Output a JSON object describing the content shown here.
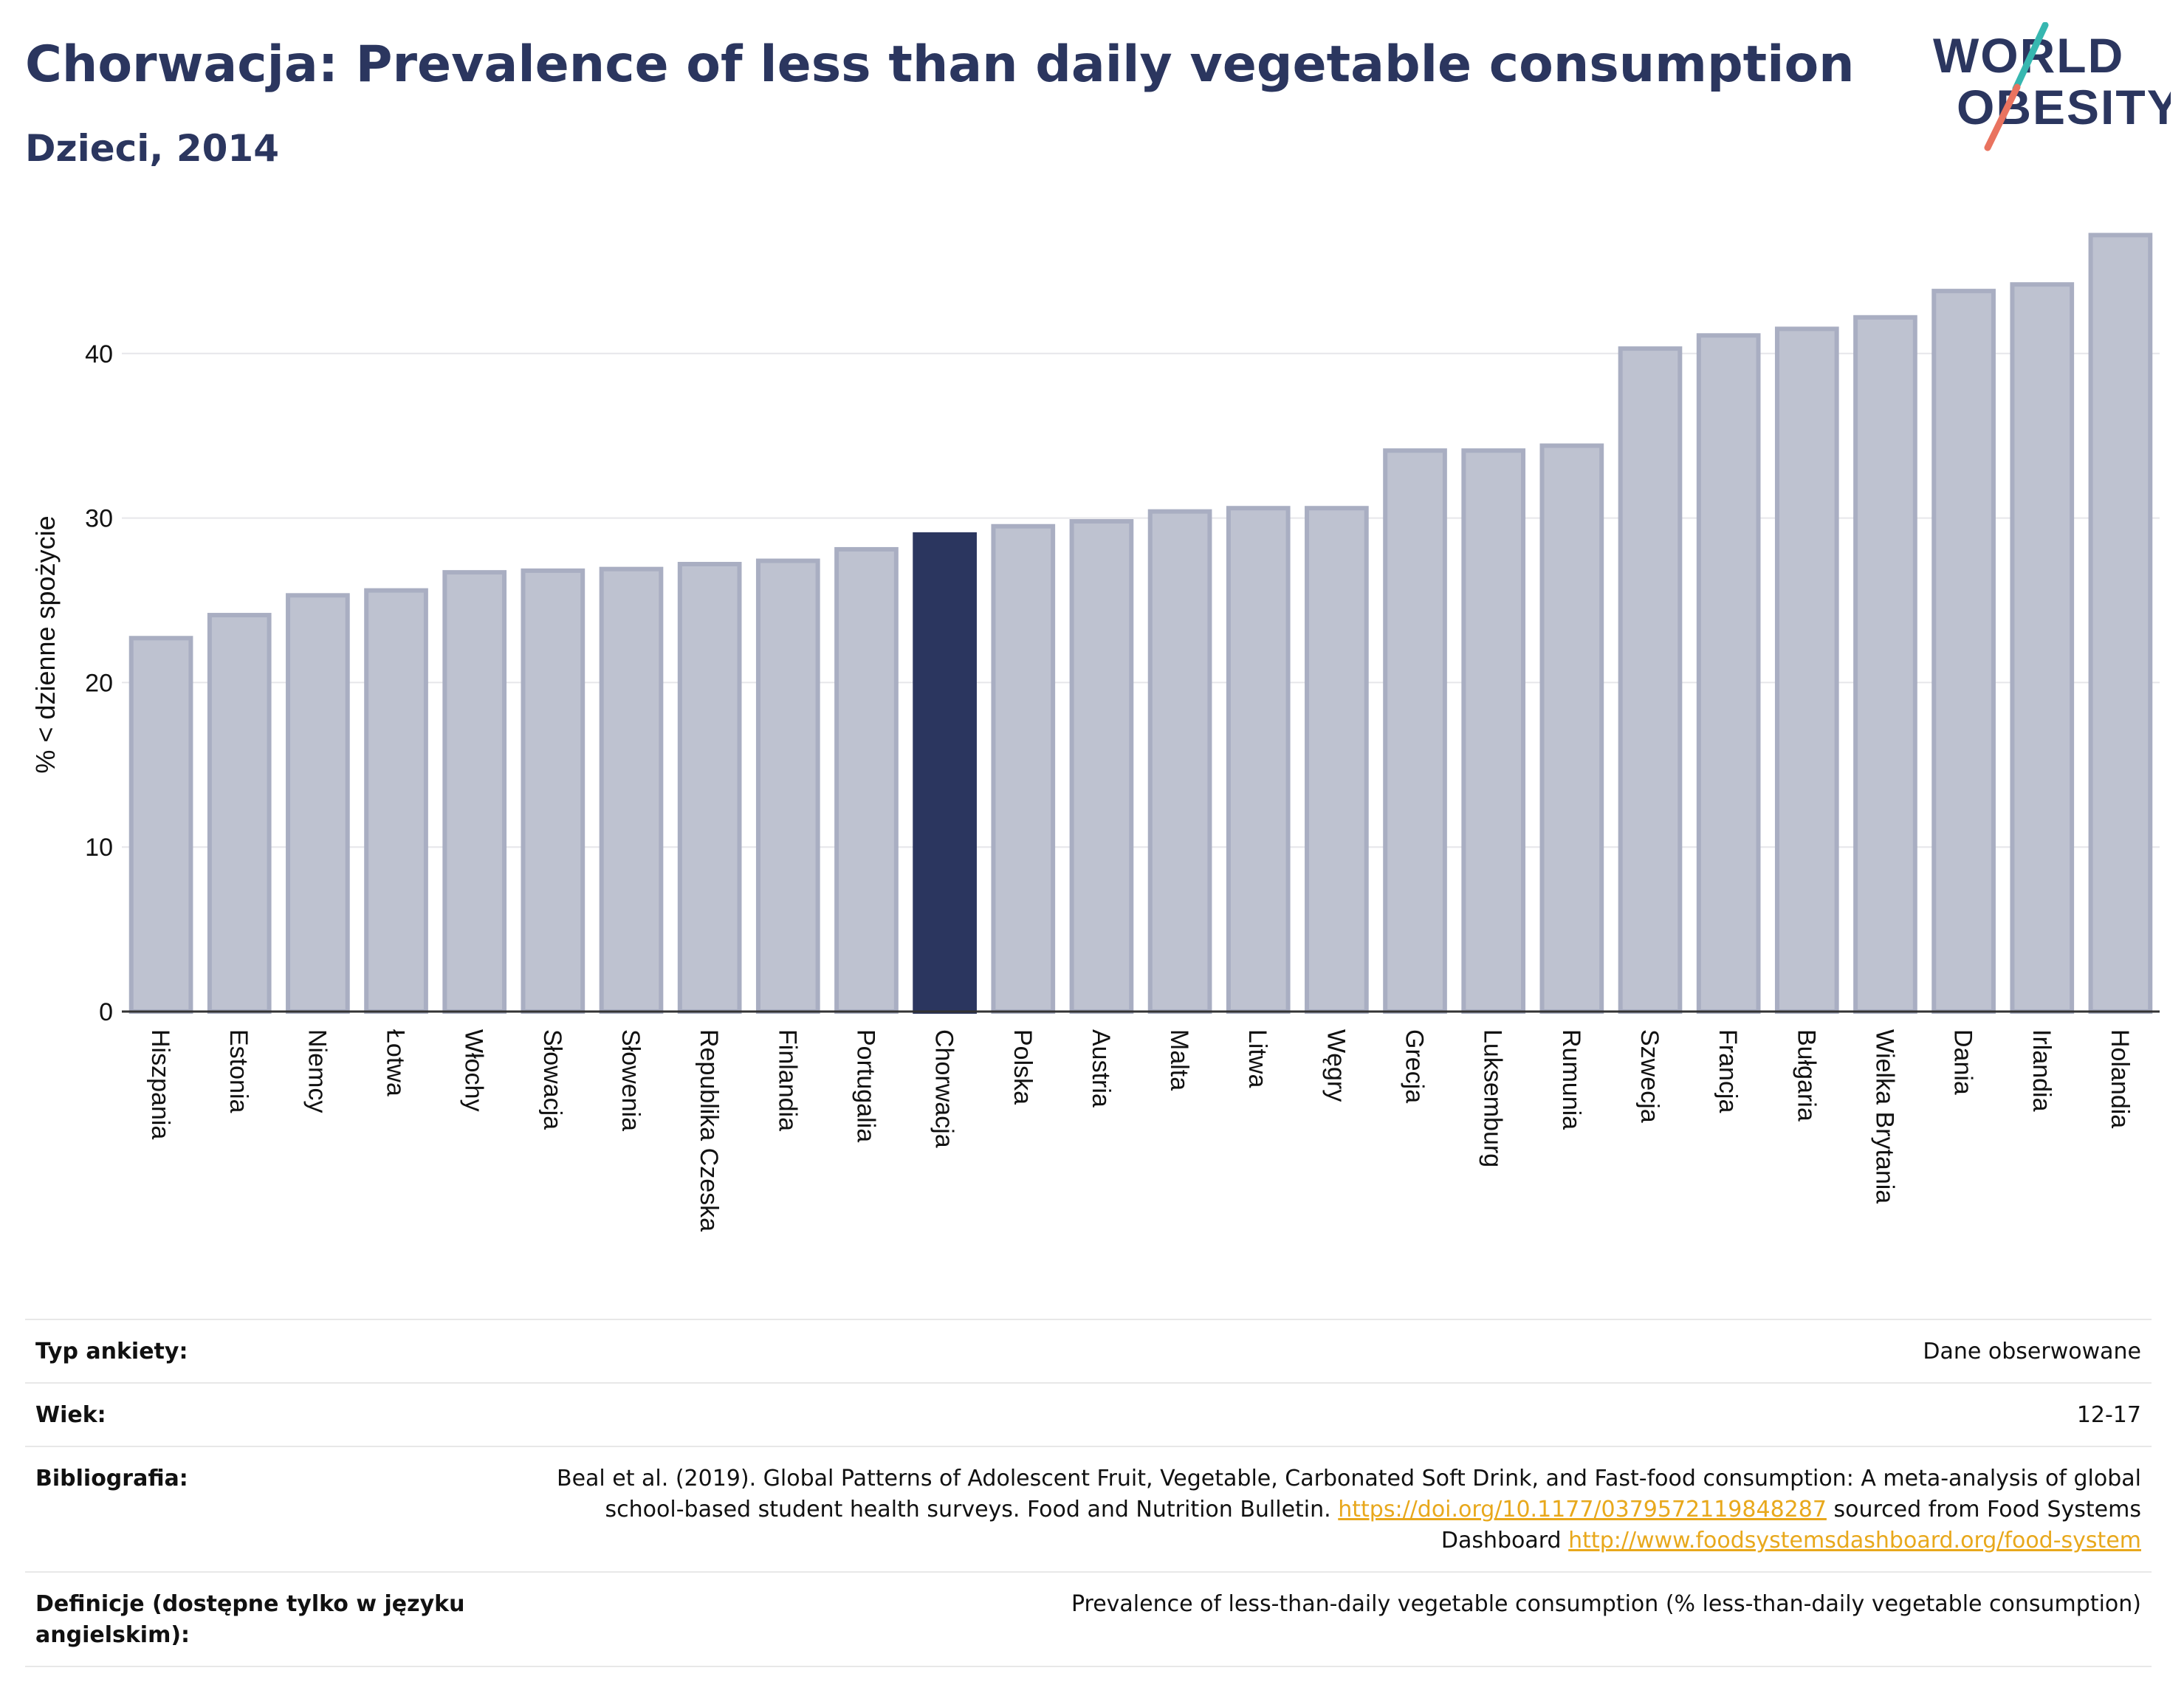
{
  "header": {
    "title": "Chorwacja: Prevalence of less than daily vegetable consumption",
    "subtitle": "Dzieci, 2014",
    "logo_line1": "WORLD",
    "logo_line2": "OBESITY"
  },
  "colors": {
    "title": "#2b365f",
    "bar_default": "#bec2d0",
    "bar_default_stroke": "#a9aec2",
    "bar_highlight": "#2b365f",
    "logo_teal": "#37b7b0",
    "logo_coral": "#e9735f",
    "link": "#e8a81c"
  },
  "chart_data": {
    "type": "bar",
    "categories": [
      "Hiszpania",
      "Estonia",
      "Niemcy",
      "Łotwa",
      "Włochy",
      "Słowacja",
      "Słowenia",
      "Republika Czeska",
      "Finlandia",
      "Portugalia",
      "Chorwacja",
      "Polska",
      "Austria",
      "Malta",
      "Litwa",
      "Węgry",
      "Grecja",
      "Luksemburg",
      "Rumunia",
      "Szwecja",
      "Francja",
      "Bułgaria",
      "Wielka Brytania",
      "Dania",
      "Irlandia",
      "Holandia"
    ],
    "values": [
      22.7,
      24.1,
      25.3,
      25.6,
      26.7,
      26.8,
      26.9,
      27.2,
      27.4,
      28.1,
      29.0,
      29.5,
      29.8,
      30.4,
      30.6,
      30.6,
      34.1,
      34.1,
      34.4,
      40.3,
      41.1,
      41.5,
      42.2,
      43.8,
      44.2,
      47.2
    ],
    "highlight": "Chorwacja",
    "ylabel": "% < dzienne spożycie",
    "xlabel": "",
    "ylim": [
      0,
      50
    ],
    "yticks": [
      0,
      10,
      20,
      30,
      40
    ],
    "grid": true
  },
  "info": [
    {
      "label": "Typ ankiety:",
      "value": "Dane obserwowane"
    },
    {
      "label": "Wiek:",
      "value": "12-17"
    },
    {
      "label": "Bibliografia:",
      "value_text1": "Beal et al. (2019). Global Patterns of Adolescent Fruit, Vegetable, Carbonated Soft Drink, and Fast-food consumption: A meta-analysis of global school-based student health surveys. Food and Nutrition Bulletin.",
      "link1": "https://doi.org/10.1177/0379572119848287",
      "value_text2": "sourced from Food Systems Dashboard",
      "link2": "http://www.foodsystemsdashboard.org/food-system"
    },
    {
      "label": "Definicje (dostępne tylko w języku angielskim):",
      "value": "Prevalence of less-than-daily vegetable consumption (% less-than-daily vegetable consumption)"
    }
  ]
}
